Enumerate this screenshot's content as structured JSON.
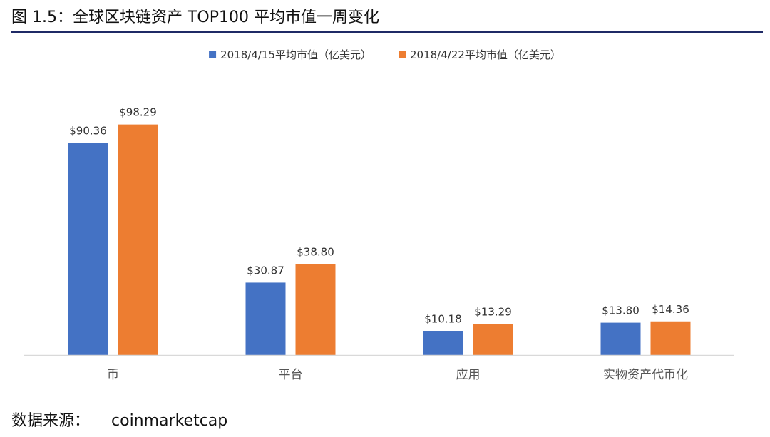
{
  "figure": {
    "caption": "图 1.5：全球区块链资产 TOP100 平均市值一周变化",
    "source_label": "数据来源：",
    "source_value": "coinmarketcap"
  },
  "chart_data": {
    "type": "bar",
    "title": "",
    "xlabel": "",
    "ylabel": "",
    "ylim": [
      0,
      110
    ],
    "grid": false,
    "legend_position": "top-center",
    "categories": [
      "币",
      "平台",
      "应用",
      "实物资产代币化"
    ],
    "series": [
      {
        "name": "2018/4/15平均市值（亿美元）",
        "color": "#4472c4",
        "values": [
          90.36,
          30.87,
          10.18,
          13.8
        ],
        "labels": [
          "$90.36",
          "$30.87",
          "$10.18",
          "$13.80"
        ]
      },
      {
        "name": "2018/4/22平均市值（亿美元）",
        "color": "#ed7d31",
        "values": [
          98.29,
          38.8,
          13.29,
          14.36
        ],
        "labels": [
          "$98.29",
          "$38.80",
          "$13.29",
          "$14.36"
        ]
      }
    ],
    "colors": {
      "axis": "#d9d9d9",
      "label_text": "#333333",
      "category_text": "#555555"
    }
  }
}
